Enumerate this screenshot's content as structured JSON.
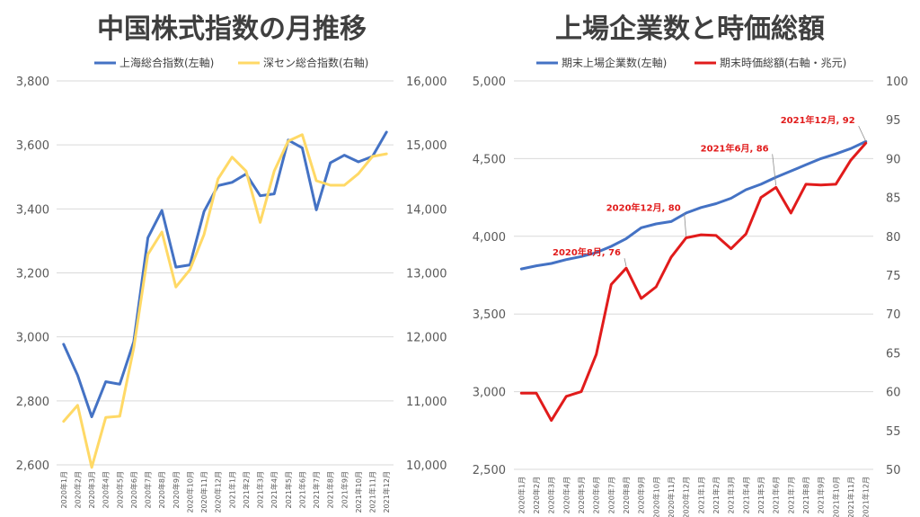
{
  "chart_data": [
    {
      "type": "line",
      "title": "中国株式指数の月推移",
      "categories": [
        "2020年1月",
        "2020年2月",
        "2020年3月",
        "2020年4月",
        "2020年5月",
        "2020年6月",
        "2020年7月",
        "2020年8月",
        "2020年9月",
        "2020年10月",
        "2020年11月",
        "2020年12月",
        "2021年1月",
        "2021年2月",
        "2021年3月",
        "2021年4月",
        "2021年5月",
        "2021年6月",
        "2021年7月",
        "2021年8月",
        "2021年9月",
        "2021年10月",
        "2021年11月",
        "2021年12月"
      ],
      "left_axis": {
        "ylim": [
          2600,
          3800
        ],
        "ticks": [
          "2,600",
          "2,800",
          "3,000",
          "3,200",
          "3,400",
          "3,600",
          "3,800"
        ]
      },
      "right_axis": {
        "ylim": [
          10000,
          16000
        ],
        "ticks": [
          "10,000",
          "11,000",
          "12,000",
          "13,000",
          "14,000",
          "15,000",
          "16,000"
        ]
      },
      "grid": true,
      "legend_position": "top",
      "series": [
        {
          "name": "上海総合指数(左軸)",
          "axis": "left",
          "color": "#4472c4",
          "values": [
            2977,
            2880,
            2750,
            2860,
            2852,
            2985,
            3310,
            3395,
            3218,
            3225,
            3392,
            3473,
            3483,
            3509,
            3441,
            3447,
            3615,
            3591,
            3397,
            3544,
            3568,
            3547,
            3564,
            3640
          ]
        },
        {
          "name": "深セン総合指数(右軸)",
          "axis": "right",
          "color": "#ffd966",
          "values": [
            10680,
            10930,
            9960,
            10740,
            10760,
            11830,
            13290,
            13640,
            12780,
            13050,
            13600,
            14470,
            14810,
            14590,
            13790,
            14590,
            15060,
            15160,
            14440,
            14370,
            14370,
            14550,
            14820,
            14860
          ]
        }
      ]
    },
    {
      "type": "line",
      "title": "上場企業数と時価総額",
      "categories": [
        "2020年1月",
        "2020年2月",
        "2020年3月",
        "2020年4月",
        "2020年5月",
        "2020年6月",
        "2020年7月",
        "2020年8月",
        "2020年9月",
        "2020年10月",
        "2020年11月",
        "2020年12月",
        "2021年1月",
        "2021年2月",
        "2021年3月",
        "2021年4月",
        "2021年5月",
        "2021年6月",
        "2021年7月",
        "2021年8月",
        "2021年9月",
        "2021年10月",
        "2021年11月",
        "2021年12月"
      ],
      "left_axis": {
        "ylim": [
          2500,
          5000
        ],
        "ticks": [
          "2,500",
          "3,000",
          "3,500",
          "4,000",
          "4,500",
          "5,000"
        ]
      },
      "right_axis": {
        "ylim": [
          50,
          100
        ],
        "ticks": [
          "50",
          "55",
          "60",
          "65",
          "70",
          "75",
          "80",
          "85",
          "90",
          "95",
          "100"
        ]
      },
      "grid": true,
      "legend_position": "top",
      "series": [
        {
          "name": "期末上場企業数(左軸)",
          "axis": "left",
          "color": "#4472c4",
          "values": [
            3790,
            3810,
            3825,
            3850,
            3870,
            3895,
            3935,
            3985,
            4055,
            4080,
            4095,
            4150,
            4185,
            4210,
            4245,
            4300,
            4335,
            4380,
            4420,
            4460,
            4500,
            4530,
            4565,
            4610
          ]
        },
        {
          "name": "期末時価総額(右軸・兆元)",
          "axis": "right",
          "color": "#e11b1b",
          "values": [
            59.8,
            59.8,
            56.3,
            59.4,
            60.0,
            64.8,
            73.8,
            75.9,
            72.0,
            73.5,
            77.3,
            79.8,
            80.2,
            80.1,
            78.4,
            80.3,
            85.0,
            86.3,
            83.0,
            86.7,
            86.6,
            86.7,
            89.8,
            92.0
          ]
        }
      ],
      "annotations": [
        {
          "label": "2020年8月, 76",
          "index": 7
        },
        {
          "label": "2020年12月, 80",
          "index": 11
        },
        {
          "label": "2021年6月, 86",
          "index": 17
        },
        {
          "label": "2021年12月, 92",
          "index": 23
        }
      ]
    }
  ]
}
